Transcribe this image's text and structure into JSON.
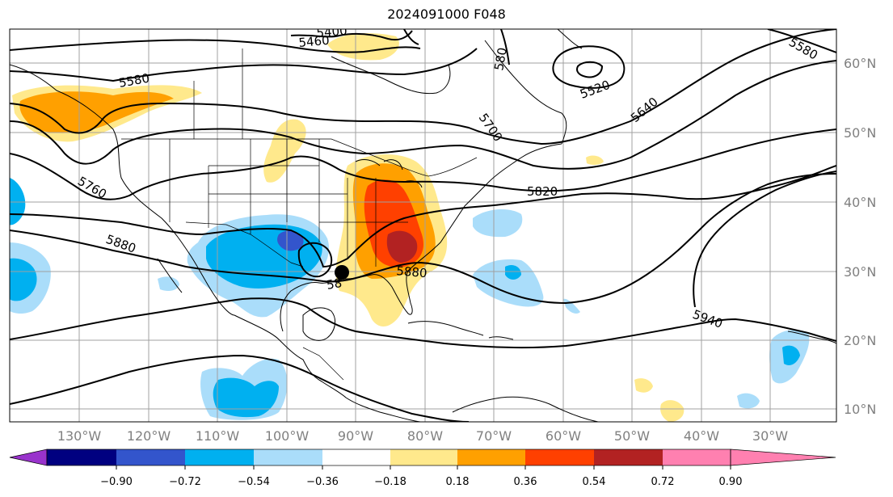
{
  "title": "2024091000 F048",
  "lat_labels": [
    "60°N",
    "50°N",
    "40°N",
    "30°N",
    "20°N",
    "10°N"
  ],
  "lon_labels": [
    "130°W",
    "120°W",
    "110°W",
    "100°W",
    "90°W",
    "80°W",
    "70°W",
    "60°W",
    "50°W",
    "40°W",
    "30°W"
  ],
  "contour_labels": [
    "5460",
    "5400",
    "5580",
    "5760",
    "5880",
    "5520",
    "5640",
    "5700",
    "5820",
    "5880",
    "5940",
    "5580",
    "580",
    "58"
  ],
  "colorbar": {
    "tick_labels": [
      "−0.90",
      "−0.72",
      "−0.54",
      "−0.36",
      "−0.18",
      "0.18",
      "0.36",
      "0.54",
      "0.72",
      "0.90"
    ],
    "colors": [
      "#9933cc",
      "#000080",
      "#3355cc",
      "#00b0f0",
      "#aaddfa",
      "#ffffff",
      "#ffe98c",
      "#ffa000",
      "#ff4000",
      "#b22222",
      "#ff80b0"
    ]
  },
  "colors": {
    "contour": "#000000",
    "grid": "#a0a0a0",
    "coast": "#000000"
  }
}
